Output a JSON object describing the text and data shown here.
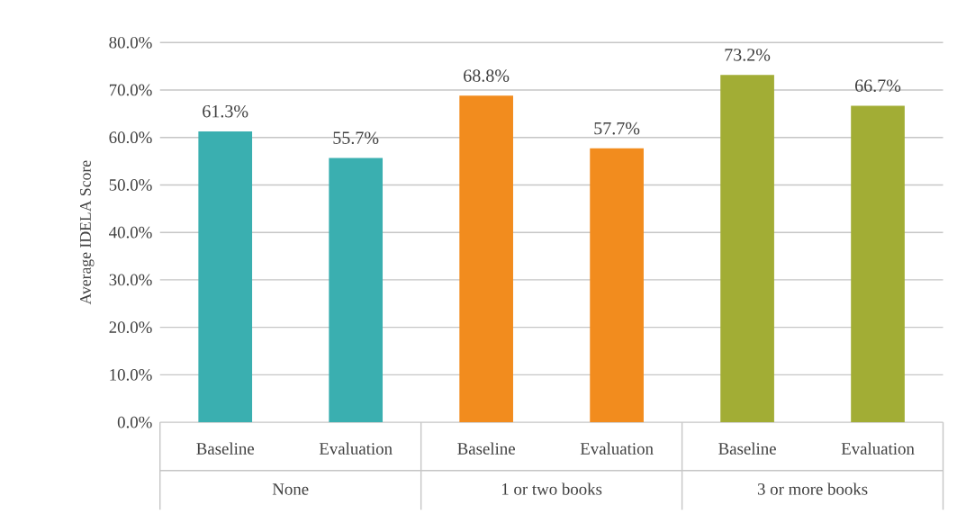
{
  "chart_data": {
    "type": "bar",
    "ylabel": "Average IDELA Score",
    "categories": [
      "Baseline",
      "Evaluation",
      "Baseline",
      "Evaluation",
      "Baseline",
      "Evaluation"
    ],
    "values": [
      61.3,
      55.7,
      68.8,
      57.7,
      73.2,
      66.7
    ],
    "value_labels": [
      "61.3%",
      "55.7%",
      "68.8%",
      "57.7%",
      "73.2%",
      "66.7%"
    ],
    "colors": [
      "#3aafb0",
      "#3aafb0",
      "#f28c1e",
      "#f28c1e",
      "#a2ad35",
      "#a2ad35"
    ],
    "ylim": [
      0,
      80
    ],
    "yticks": [
      {
        "value": 0,
        "label": "0.0%"
      },
      {
        "value": 10,
        "label": "10.0%"
      },
      {
        "value": 20,
        "label": "20.0%"
      },
      {
        "value": 30,
        "label": "30.0%"
      },
      {
        "value": 40,
        "label": "40.0%"
      },
      {
        "value": 50,
        "label": "50.0%"
      },
      {
        "value": 60,
        "label": "60.0%"
      },
      {
        "value": 70,
        "label": "70.0%"
      },
      {
        "value": 80,
        "label": "80.0%"
      }
    ],
    "grid": "y",
    "annotations": [
      "None",
      "1 or two books",
      "3 or more books"
    ]
  }
}
